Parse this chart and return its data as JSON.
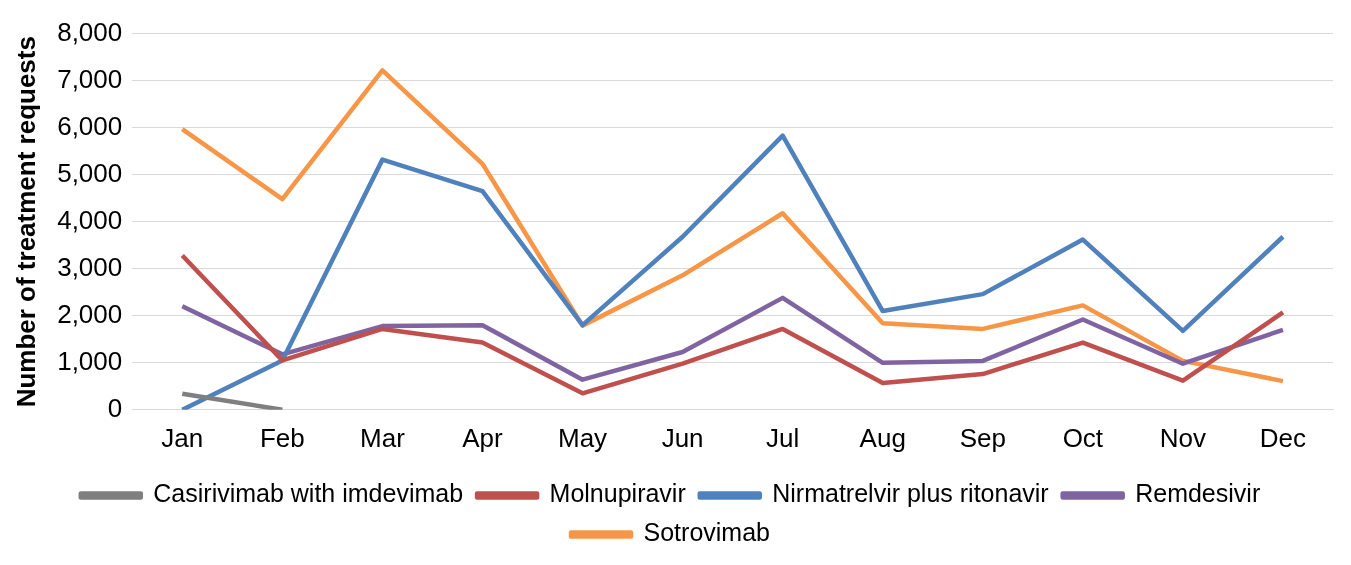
{
  "chart_data": {
    "type": "line",
    "ylabel": "Number of treatment requests",
    "categories": [
      "Jan",
      "Feb",
      "Mar",
      "Apr",
      "May",
      "Jun",
      "Jul",
      "Aug",
      "Sep",
      "Oct",
      "Nov",
      "Dec"
    ],
    "series": [
      {
        "name": "Casirivimab with imdevimab",
        "color": "#7f7f7f",
        "values": [
          340,
          0,
          null,
          null,
          null,
          null,
          null,
          null,
          null,
          null,
          null,
          null
        ]
      },
      {
        "name": "Molnupiravir",
        "color": "#c0504d",
        "values": [
          3280,
          1050,
          1720,
          1430,
          350,
          980,
          1720,
          570,
          760,
          1430,
          620,
          2070
        ]
      },
      {
        "name": "Nirmatrelvir plus ritonavir",
        "color": "#4f81bd",
        "values": [
          0,
          1050,
          5320,
          4650,
          1800,
          3680,
          5830,
          2100,
          2460,
          3620,
          1680,
          3680
        ]
      },
      {
        "name": "Remdesivir",
        "color": "#8064a2",
        "values": [
          2200,
          1180,
          1780,
          1800,
          640,
          1230,
          2380,
          1000,
          1040,
          1920,
          980,
          1700
        ]
      },
      {
        "name": "Sotrovimab",
        "color": "#f79646",
        "values": [
          5970,
          4480,
          7220,
          5230,
          1790,
          2860,
          4180,
          1840,
          1720,
          2220,
          1040,
          610
        ]
      }
    ],
    "ylim": [
      0,
      8000
    ],
    "yticks": [
      0,
      {
        "value": 1000,
        "label": "1,000"
      },
      {
        "value": 2000,
        "label": "2,000"
      },
      {
        "value": 3000,
        "label": "3,000"
      },
      {
        "value": 4000,
        "label": "4,000"
      },
      {
        "value": 5000,
        "label": "5,000"
      },
      {
        "value": 6000,
        "label": "6,000"
      },
      {
        "value": 7000,
        "label": "7,000"
      },
      {
        "value": 8000,
        "label": "8,000"
      }
    ],
    "grid": "y",
    "legend": "bottom",
    "marker": "none",
    "line_style": "solid"
  }
}
